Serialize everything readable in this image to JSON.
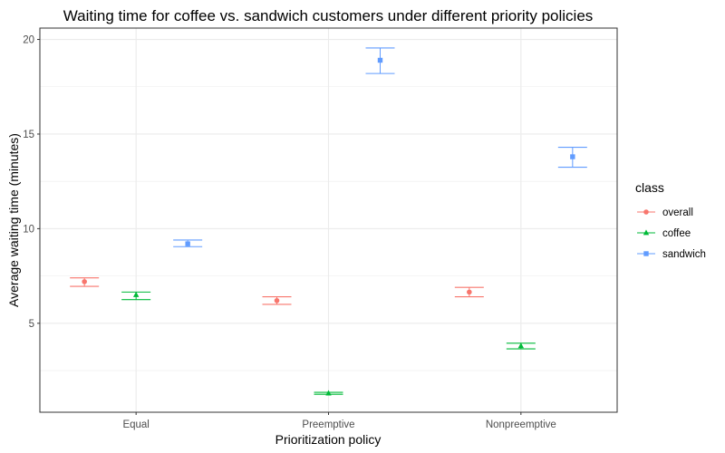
{
  "chart_data": {
    "type": "scatter",
    "title": "Waiting time for coffee vs. sandwich customers under different priority policies",
    "xlabel": "Prioritization policy",
    "ylabel": "Average waiting time (minutes)",
    "categories": [
      "Equal",
      "Preemptive",
      "Nonpreemptive"
    ],
    "ylim": [
      0.3,
      20.6
    ],
    "yticks": [
      5,
      10,
      15,
      20
    ],
    "grid": true,
    "legend": {
      "title": "class",
      "position": "right",
      "items": [
        "overall",
        "coffee",
        "sandwich"
      ]
    },
    "series": [
      {
        "name": "overall",
        "color": "#F8766D",
        "marker": "circle",
        "values": [
          7.2,
          6.2,
          6.65
        ],
        "err_low": [
          6.95,
          6.0,
          6.4
        ],
        "err_high": [
          7.4,
          6.4,
          6.9
        ]
      },
      {
        "name": "coffee",
        "color": "#00BA38",
        "marker": "triangle",
        "values": [
          6.5,
          1.3,
          3.8
        ],
        "err_low": [
          6.25,
          1.25,
          3.65
        ],
        "err_high": [
          6.65,
          1.35,
          3.95
        ]
      },
      {
        "name": "sandwich",
        "color": "#619CFF",
        "marker": "square",
        "values": [
          9.2,
          18.9,
          13.8
        ],
        "err_low": [
          9.05,
          18.2,
          13.25
        ],
        "err_high": [
          9.4,
          19.55,
          14.3
        ]
      }
    ]
  }
}
